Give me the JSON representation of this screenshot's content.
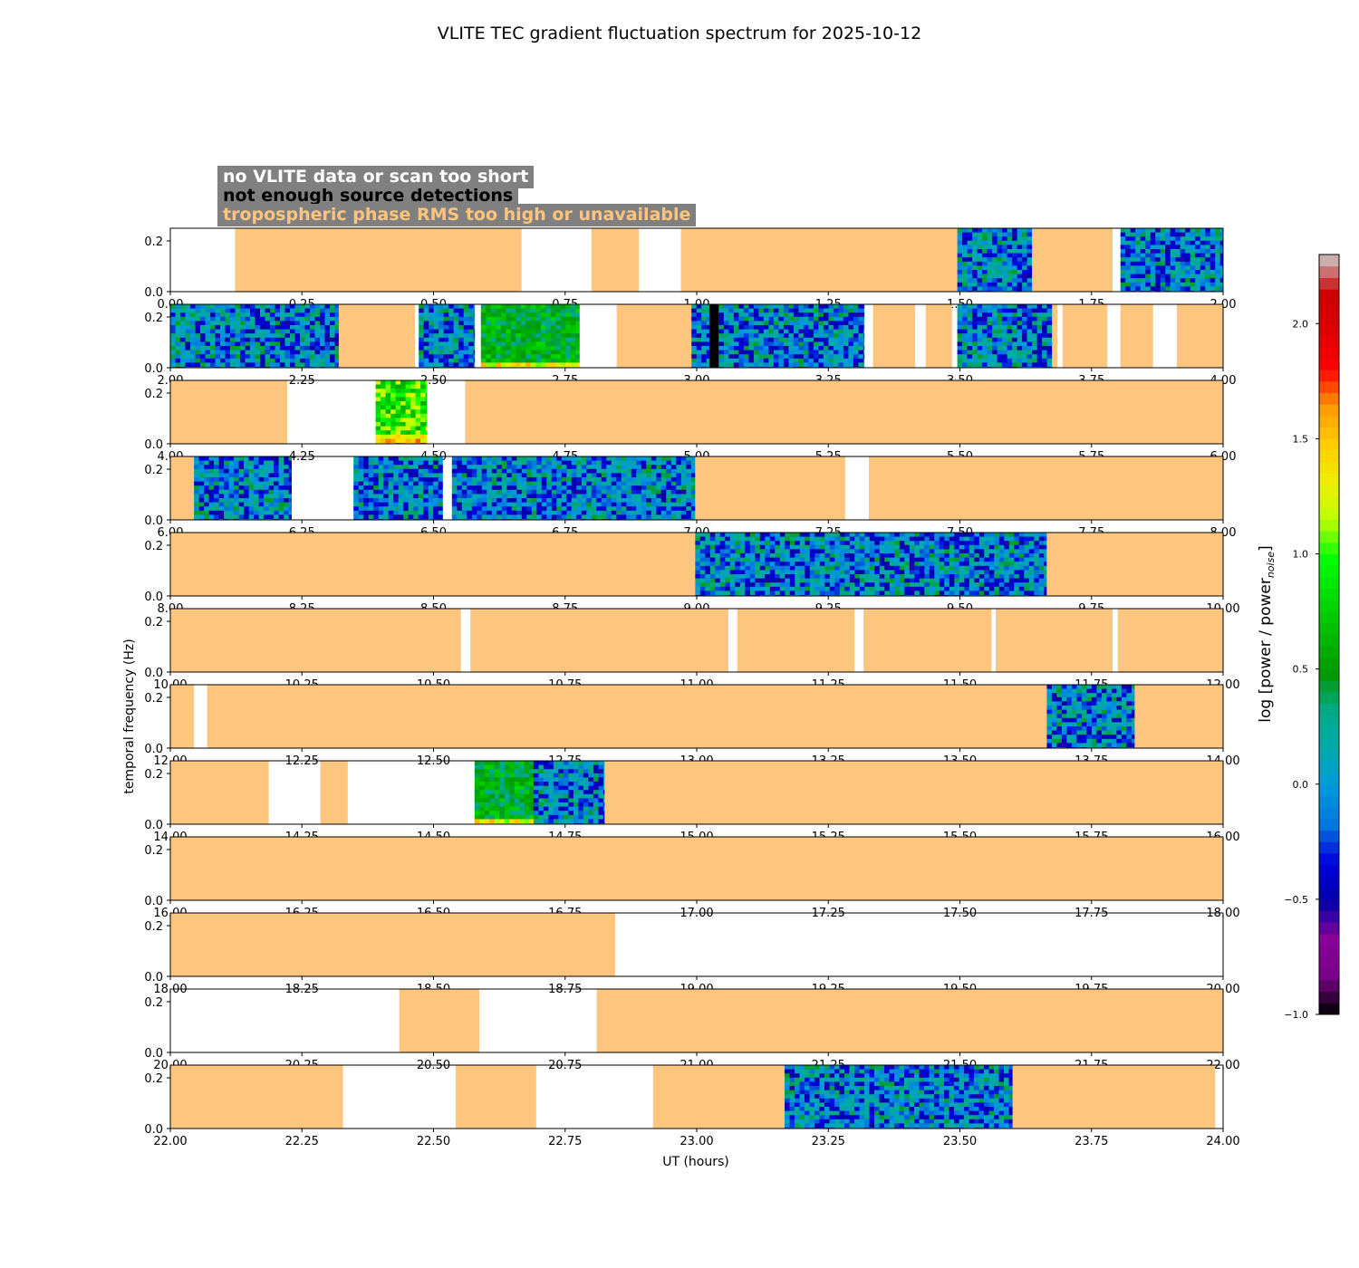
{
  "chart_data": {
    "type": "heatmap",
    "title": "VLITE TEC gradient fluctuation spectrum for 2025-10-12",
    "xlabel": "UT (hours)",
    "ylabel": "temporal frequency (Hz)",
    "ylim": [
      0,
      0.25
    ],
    "y_ticks": [
      "0.0",
      "0.2"
    ],
    "hours_per_row": 2,
    "rows": [
      {
        "x_range": [
          0,
          2
        ],
        "tick_labels": [
          "0.00",
          "0.25",
          "0.50",
          "0.75",
          "1.00",
          "1.25",
          "1.50",
          "1.75",
          "2.00"
        ],
        "segments": [
          {
            "start": 0.123,
            "end": 0.667,
            "status": "tropo"
          },
          {
            "start": 0.8,
            "end": 0.89,
            "status": "tropo"
          },
          {
            "start": 0.97,
            "end": 1.495,
            "status": "tropo"
          },
          {
            "start": 1.495,
            "end": 1.637,
            "status": "spectrum",
            "level": "low"
          },
          {
            "start": 1.637,
            "end": 1.79,
            "status": "tropo"
          },
          {
            "start": 1.805,
            "end": 2.0,
            "status": "spectrum",
            "level": "low"
          }
        ]
      },
      {
        "x_range": [
          2,
          4
        ],
        "tick_labels": [
          "2.00",
          "2.25",
          "2.50",
          "2.75",
          "3.00",
          "3.25",
          "3.50",
          "3.75",
          "4.00"
        ],
        "segments": [
          {
            "start": 2.0,
            "end": 2.32,
            "status": "spectrum",
            "level": "low"
          },
          {
            "start": 2.32,
            "end": 2.465,
            "status": "tropo"
          },
          {
            "start": 2.472,
            "end": 2.578,
            "status": "spectrum",
            "level": "low"
          },
          {
            "start": 2.59,
            "end": 2.777,
            "status": "spectrum",
            "level": "mid"
          },
          {
            "start": 2.848,
            "end": 2.99,
            "status": "tropo"
          },
          {
            "start": 2.99,
            "end": 3.024,
            "status": "spectrum",
            "level": "low"
          },
          {
            "start": 3.024,
            "end": 3.042,
            "status": "nodet"
          },
          {
            "start": 3.042,
            "end": 3.318,
            "status": "spectrum",
            "level": "low"
          },
          {
            "start": 3.335,
            "end": 3.415,
            "status": "tropo"
          },
          {
            "start": 3.435,
            "end": 3.485,
            "status": "tropo"
          },
          {
            "start": 3.495,
            "end": 3.675,
            "status": "spectrum",
            "level": "low"
          },
          {
            "start": 3.675,
            "end": 3.685,
            "status": "tropo"
          },
          {
            "start": 3.695,
            "end": 3.78,
            "status": "tropo"
          },
          {
            "start": 3.805,
            "end": 3.867,
            "status": "tropo"
          },
          {
            "start": 3.912,
            "end": 4.0,
            "status": "tropo"
          }
        ]
      },
      {
        "x_range": [
          4,
          6
        ],
        "tick_labels": [
          "4.00",
          "4.25",
          "4.50",
          "4.75",
          "5.00",
          "5.25",
          "5.50",
          "5.75",
          "6.00"
        ],
        "segments": [
          {
            "start": 4.0,
            "end": 4.222,
            "status": "tropo"
          },
          {
            "start": 4.39,
            "end": 4.487,
            "status": "spectrum",
            "level": "high"
          },
          {
            "start": 4.56,
            "end": 6.0,
            "status": "tropo"
          }
        ]
      },
      {
        "x_range": [
          6,
          8
        ],
        "tick_labels": [
          "6.00",
          "6.25",
          "6.50",
          "6.75",
          "7.00",
          "7.25",
          "7.50",
          "7.75",
          "8.00"
        ],
        "segments": [
          {
            "start": 6.0,
            "end": 6.045,
            "status": "tropo"
          },
          {
            "start": 6.045,
            "end": 6.23,
            "status": "spectrum",
            "level": "low"
          },
          {
            "start": 6.348,
            "end": 6.517,
            "status": "spectrum",
            "level": "low"
          },
          {
            "start": 6.535,
            "end": 6.997,
            "status": "spectrum",
            "level": "low"
          },
          {
            "start": 6.997,
            "end": 7.282,
            "status": "tropo"
          },
          {
            "start": 7.327,
            "end": 8.0,
            "status": "tropo"
          }
        ]
      },
      {
        "x_range": [
          8,
          10
        ],
        "tick_labels": [
          "8.00",
          "8.25",
          "8.50",
          "8.75",
          "9.00",
          "9.25",
          "9.50",
          "9.75",
          "10.00"
        ],
        "segments": [
          {
            "start": 8.0,
            "end": 8.997,
            "status": "tropo"
          },
          {
            "start": 8.997,
            "end": 9.665,
            "status": "spectrum",
            "level": "low"
          },
          {
            "start": 9.665,
            "end": 10.0,
            "status": "tropo"
          }
        ]
      },
      {
        "x_range": [
          10,
          12
        ],
        "tick_labels": [
          "10.00",
          "10.25",
          "10.50",
          "10.75",
          "11.00",
          "11.25",
          "11.50",
          "11.75",
          "12.00"
        ],
        "segments": [
          {
            "start": 10.0,
            "end": 10.552,
            "status": "tropo"
          },
          {
            "start": 10.57,
            "end": 11.06,
            "status": "tropo"
          },
          {
            "start": 11.077,
            "end": 11.3,
            "status": "tropo"
          },
          {
            "start": 11.317,
            "end": 11.56,
            "status": "tropo"
          },
          {
            "start": 11.568,
            "end": 11.79,
            "status": "tropo"
          },
          {
            "start": 11.8,
            "end": 12.0,
            "status": "tropo"
          }
        ]
      },
      {
        "x_range": [
          12,
          14
        ],
        "tick_labels": [
          "12.00",
          "12.25",
          "12.50",
          "12.75",
          "13.00",
          "13.25",
          "13.50",
          "13.75",
          "14.00"
        ],
        "segments": [
          {
            "start": 12.0,
            "end": 12.045,
            "status": "tropo"
          },
          {
            "start": 12.07,
            "end": 13.665,
            "status": "tropo"
          },
          {
            "start": 13.665,
            "end": 13.832,
            "status": "spectrum",
            "level": "low"
          },
          {
            "start": 13.832,
            "end": 14.0,
            "status": "tropo"
          }
        ]
      },
      {
        "x_range": [
          14,
          16
        ],
        "tick_labels": [
          "14.00",
          "14.25",
          "14.50",
          "14.75",
          "15.00",
          "15.25",
          "15.50",
          "15.75",
          "16.00"
        ],
        "segments": [
          {
            "start": 14.0,
            "end": 14.187,
            "status": "tropo"
          },
          {
            "start": 14.285,
            "end": 14.337,
            "status": "tropo"
          },
          {
            "start": 14.578,
            "end": 14.69,
            "status": "spectrum",
            "level": "mid"
          },
          {
            "start": 14.69,
            "end": 14.825,
            "status": "spectrum",
            "level": "low"
          },
          {
            "start": 14.825,
            "end": 16.0,
            "status": "tropo"
          }
        ]
      },
      {
        "x_range": [
          16,
          18
        ],
        "tick_labels": [
          "16.00",
          "16.25",
          "16.50",
          "16.75",
          "17.00",
          "17.25",
          "17.50",
          "17.75",
          "18.00"
        ],
        "segments": [
          {
            "start": 16.0,
            "end": 18.0,
            "status": "tropo"
          }
        ]
      },
      {
        "x_range": [
          18,
          20
        ],
        "tick_labels": [
          "18.00",
          "18.25",
          "18.50",
          "18.75",
          "19.00",
          "19.25",
          "19.50",
          "19.75",
          "20.00"
        ],
        "segments": [
          {
            "start": 18.0,
            "end": 18.845,
            "status": "tropo"
          }
        ]
      },
      {
        "x_range": [
          20,
          22
        ],
        "tick_labels": [
          "20.00",
          "20.25",
          "20.50",
          "20.75",
          "21.00",
          "21.25",
          "21.50",
          "21.75",
          "22.00"
        ],
        "segments": [
          {
            "start": 20.435,
            "end": 20.587,
            "status": "tropo"
          },
          {
            "start": 20.81,
            "end": 22.0,
            "status": "tropo"
          }
        ]
      },
      {
        "x_range": [
          22,
          24
        ],
        "tick_labels": [
          "22.00",
          "22.25",
          "22.50",
          "22.75",
          "23.00",
          "23.25",
          "23.50",
          "23.75",
          "24.00"
        ],
        "segments": [
          {
            "start": 22.0,
            "end": 22.328,
            "status": "tropo"
          },
          {
            "start": 22.542,
            "end": 22.695,
            "status": "tropo"
          },
          {
            "start": 22.917,
            "end": 23.167,
            "status": "tropo"
          },
          {
            "start": 23.167,
            "end": 23.6,
            "status": "spectrum",
            "level": "low"
          },
          {
            "start": 23.6,
            "end": 23.985,
            "status": "tropo"
          }
        ]
      }
    ],
    "legend": [
      {
        "label": "no VLITE data or scan too short",
        "text_color": "#ffffff",
        "box_color": "#808080"
      },
      {
        "label": "not enough source detections",
        "text_color": "#000000",
        "box_color": "#808080"
      },
      {
        "label": "tropospheric phase RMS too high or unavailable",
        "text_color": "#fdc57d",
        "box_color": "#808080"
      }
    ],
    "colorbar": {
      "label_prefix": "log [power / power",
      "label_sub": "noise",
      "label_suffix": "]",
      "min": -1.0,
      "max": 2.3,
      "ticks": [
        "2.0",
        "1.5",
        "1.0",
        "0.5",
        "0.0",
        "−0.5",
        "−1.0"
      ],
      "tick_values": [
        2.0,
        1.5,
        1.0,
        0.5,
        0.0,
        -0.5,
        -1.0
      ],
      "colormap": "nipy_spectral"
    },
    "colors": {
      "tropo": "#fdc57d",
      "nodet": "#000000",
      "nodata": "#ffffff"
    }
  }
}
